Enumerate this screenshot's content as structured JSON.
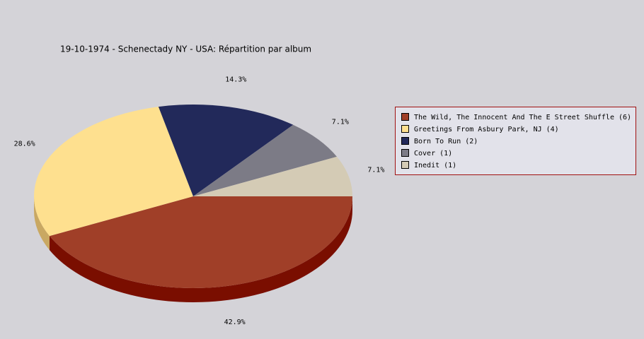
{
  "chart_data": {
    "type": "pie",
    "title": "19-10-1974 - Schenectady NY - USA:  Répartition par album",
    "categories": [
      "The Wild, The Innocent And The E Street Shuffle (6)",
      "Greetings From Asbury Park, NJ (4)",
      "Born To Run (2)",
      "Cover (1)",
      "Inedit (1)"
    ],
    "values": [
      42.9,
      28.6,
      14.3,
      7.1,
      7.1
    ],
    "value_labels": [
      "42.9%",
      "28.6%",
      "14.3%",
      "7.1%",
      "7.1%"
    ],
    "colors": [
      "#a03f28",
      "#fee08f",
      "#22295a",
      "#7c7b86",
      "#d4cbb5"
    ],
    "side_colors": [
      "#7a0e00",
      "#c9a862",
      "#121638",
      "#55545e",
      "#a9a08c"
    ],
    "legend": "right"
  }
}
